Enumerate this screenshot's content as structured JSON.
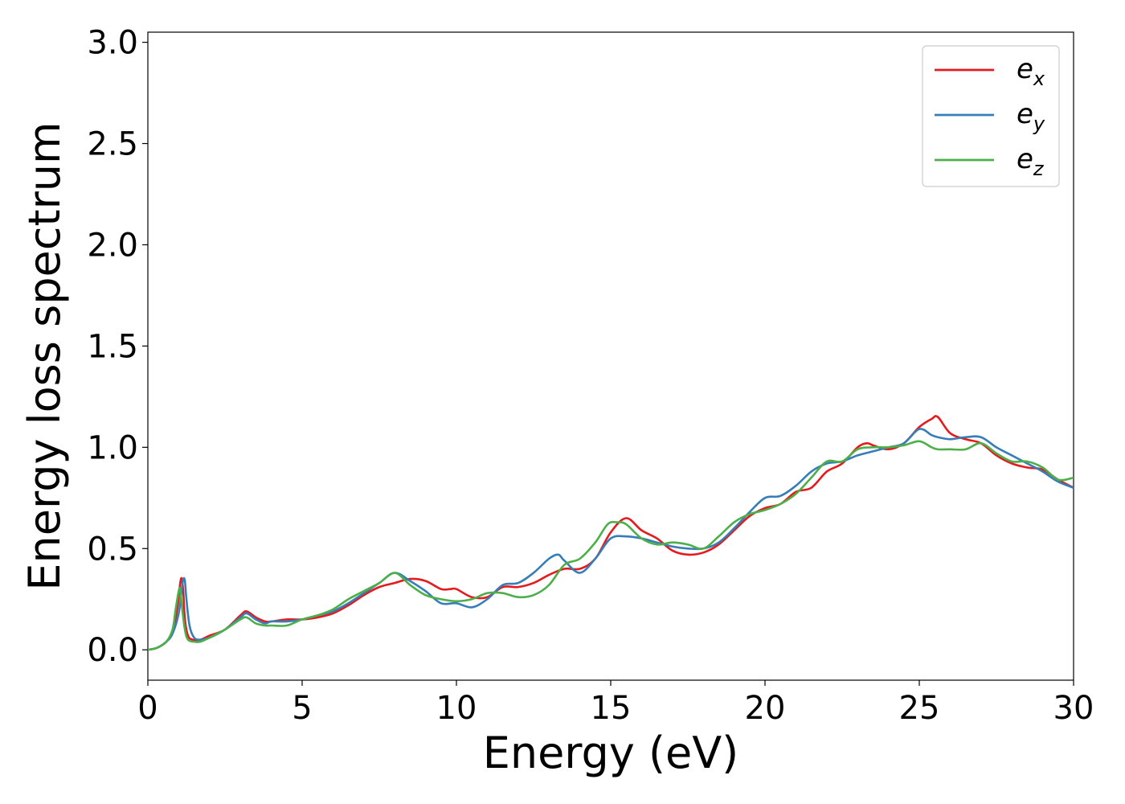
{
  "chart_data": {
    "type": "line",
    "xlabel": "Energy (eV)",
    "ylabel": "Energy loss spectrum",
    "xlim": [
      0,
      30
    ],
    "ylim": [
      -0.15,
      3.05
    ],
    "xticks": [
      0,
      5,
      10,
      15,
      20,
      25,
      30
    ],
    "xtick_labels": [
      "0",
      "5",
      "10",
      "15",
      "20",
      "25",
      "30"
    ],
    "yticks": [
      0.0,
      0.5,
      1.0,
      1.5,
      2.0,
      2.5,
      3.0
    ],
    "ytick_labels": [
      "0.0",
      "0.5",
      "1.0",
      "1.5",
      "2.0",
      "2.5",
      "3.0"
    ],
    "grid": false,
    "legend_position": "top-right",
    "series": [
      {
        "name": "e",
        "subscript": "x",
        "color": "#e41a1c",
        "x": [
          0,
          0.3,
          0.6,
          0.8,
          0.95,
          1.05,
          1.1,
          1.15,
          1.2,
          1.3,
          1.45,
          1.7,
          2.0,
          2.5,
          3.0,
          3.2,
          3.5,
          3.8,
          4.0,
          4.5,
          5.0,
          5.5,
          6.0,
          6.5,
          7.0,
          7.5,
          8.0,
          8.5,
          9.0,
          9.5,
          9.8,
          10.0,
          10.5,
          11.0,
          11.5,
          12.0,
          12.5,
          13.0,
          13.5,
          14.0,
          14.5,
          15.0,
          15.5,
          16.0,
          16.5,
          17.0,
          17.5,
          18.0,
          18.5,
          19.0,
          19.5,
          20.0,
          20.5,
          21.0,
          21.5,
          22.0,
          22.5,
          23.0,
          23.3,
          23.5,
          24.0,
          24.5,
          25.0,
          25.4,
          25.6,
          26.0,
          26.5,
          27.0,
          27.5,
          28.0,
          28.5,
          29.0,
          29.5,
          30.0
        ],
        "y": [
          0.0,
          0.01,
          0.04,
          0.09,
          0.2,
          0.33,
          0.35,
          0.28,
          0.15,
          0.07,
          0.05,
          0.05,
          0.07,
          0.1,
          0.17,
          0.19,
          0.16,
          0.14,
          0.14,
          0.15,
          0.15,
          0.16,
          0.18,
          0.22,
          0.27,
          0.31,
          0.33,
          0.35,
          0.34,
          0.3,
          0.3,
          0.3,
          0.26,
          0.26,
          0.31,
          0.31,
          0.33,
          0.37,
          0.4,
          0.4,
          0.45,
          0.58,
          0.65,
          0.59,
          0.55,
          0.49,
          0.47,
          0.48,
          0.52,
          0.59,
          0.66,
          0.7,
          0.72,
          0.78,
          0.8,
          0.88,
          0.92,
          1.0,
          1.02,
          1.01,
          0.99,
          1.02,
          1.1,
          1.14,
          1.15,
          1.07,
          1.04,
          1.02,
          0.96,
          0.92,
          0.9,
          0.89,
          0.84,
          0.8
        ]
      },
      {
        "name": "e",
        "subscript": "y",
        "color": "#377eb8",
        "x": [
          0,
          0.3,
          0.6,
          0.8,
          1.0,
          1.1,
          1.15,
          1.2,
          1.25,
          1.35,
          1.5,
          1.7,
          2.0,
          2.5,
          3.0,
          3.2,
          3.5,
          3.8,
          4.0,
          4.5,
          5.0,
          5.5,
          6.0,
          6.5,
          7.0,
          7.5,
          8.0,
          8.5,
          9.0,
          9.5,
          10.0,
          10.5,
          11.0,
          11.5,
          12.0,
          12.5,
          13.0,
          13.3,
          13.5,
          14.0,
          14.5,
          15.0,
          15.5,
          16.0,
          16.5,
          17.0,
          17.5,
          18.0,
          18.5,
          19.0,
          19.5,
          20.0,
          20.5,
          21.0,
          21.5,
          22.0,
          22.5,
          23.0,
          23.5,
          24.0,
          24.5,
          25.0,
          25.4,
          25.6,
          26.0,
          26.5,
          27.0,
          27.5,
          28.0,
          28.5,
          29.0,
          29.5,
          30.0
        ],
        "y": [
          0.0,
          0.01,
          0.04,
          0.08,
          0.18,
          0.3,
          0.35,
          0.34,
          0.25,
          0.12,
          0.06,
          0.05,
          0.06,
          0.1,
          0.16,
          0.18,
          0.15,
          0.13,
          0.14,
          0.14,
          0.15,
          0.17,
          0.19,
          0.23,
          0.28,
          0.33,
          0.38,
          0.34,
          0.29,
          0.23,
          0.23,
          0.21,
          0.25,
          0.32,
          0.33,
          0.38,
          0.45,
          0.47,
          0.44,
          0.38,
          0.45,
          0.55,
          0.56,
          0.55,
          0.53,
          0.51,
          0.5,
          0.5,
          0.53,
          0.6,
          0.68,
          0.75,
          0.76,
          0.81,
          0.88,
          0.92,
          0.93,
          0.96,
          0.98,
          1.0,
          1.02,
          1.09,
          1.06,
          1.05,
          1.04,
          1.05,
          1.05,
          1.0,
          0.96,
          0.92,
          0.88,
          0.83,
          0.8
        ]
      },
      {
        "name": "e",
        "subscript": "z",
        "color": "#4daf4a",
        "x": [
          0,
          0.3,
          0.6,
          0.8,
          0.9,
          1.0,
          1.05,
          1.1,
          1.2,
          1.3,
          1.5,
          1.7,
          2.0,
          2.5,
          3.0,
          3.2,
          3.5,
          3.8,
          4.0,
          4.5,
          5.0,
          5.5,
          6.0,
          6.5,
          7.0,
          7.5,
          8.0,
          8.5,
          9.0,
          9.5,
          10.0,
          10.5,
          11.0,
          11.5,
          12.0,
          12.5,
          13.0,
          13.5,
          14.0,
          14.5,
          14.9,
          15.2,
          15.5,
          16.0,
          16.5,
          17.0,
          17.5,
          18.0,
          18.5,
          19.0,
          19.5,
          20.0,
          20.5,
          21.0,
          21.5,
          22.0,
          22.5,
          23.0,
          23.5,
          24.0,
          24.5,
          25.0,
          25.4,
          25.6,
          26.0,
          26.5,
          27.0,
          27.5,
          28.0,
          28.5,
          29.0,
          29.5,
          30.0
        ],
        "y": [
          0.0,
          0.01,
          0.04,
          0.1,
          0.2,
          0.29,
          0.3,
          0.22,
          0.1,
          0.05,
          0.04,
          0.04,
          0.06,
          0.1,
          0.15,
          0.16,
          0.13,
          0.12,
          0.12,
          0.12,
          0.15,
          0.17,
          0.2,
          0.25,
          0.29,
          0.33,
          0.38,
          0.32,
          0.27,
          0.25,
          0.24,
          0.25,
          0.28,
          0.28,
          0.26,
          0.27,
          0.32,
          0.42,
          0.45,
          0.53,
          0.62,
          0.63,
          0.62,
          0.55,
          0.52,
          0.53,
          0.52,
          0.5,
          0.56,
          0.63,
          0.67,
          0.69,
          0.72,
          0.77,
          0.85,
          0.93,
          0.93,
          0.99,
          1.0,
          1.0,
          1.01,
          1.03,
          1.0,
          0.99,
          0.99,
          0.99,
          1.02,
          0.97,
          0.93,
          0.93,
          0.9,
          0.84,
          0.85
        ]
      }
    ]
  }
}
